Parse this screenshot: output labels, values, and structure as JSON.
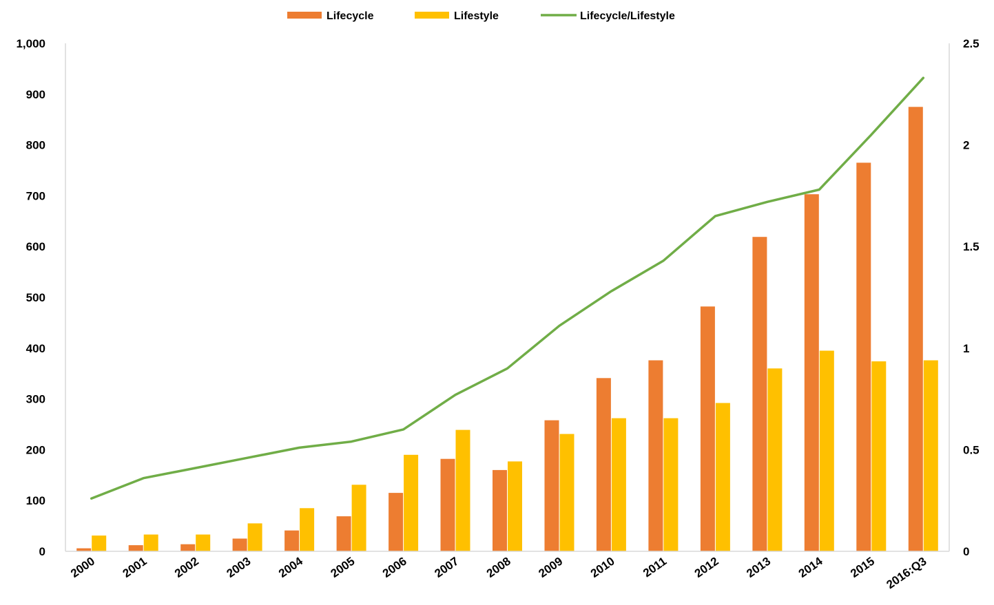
{
  "chart_data": {
    "type": "bar",
    "categories": [
      "2000",
      "2001",
      "2002",
      "2003",
      "2004",
      "2005",
      "2006",
      "2007",
      "2008",
      "2009",
      "2010",
      "2011",
      "2012",
      "2013",
      "2014",
      "2015",
      "2016:Q3"
    ],
    "series": [
      {
        "name": "Lifecycle",
        "type": "bar",
        "axis": "left",
        "color": "#ED7D31",
        "values": [
          6,
          12,
          14,
          25,
          41,
          69,
          115,
          182,
          160,
          258,
          341,
          376,
          482,
          619,
          703,
          765,
          875
        ]
      },
      {
        "name": "Lifestyle",
        "type": "bar",
        "axis": "left",
        "color": "#FFC000",
        "values": [
          31,
          33,
          33,
          55,
          85,
          131,
          190,
          239,
          177,
          231,
          262,
          262,
          292,
          360,
          395,
          374,
          376
        ]
      },
      {
        "name": "Lifecycle/Lifestyle",
        "type": "line",
        "axis": "right",
        "color": "#70AD47",
        "values": [
          0.26,
          0.36,
          0.41,
          0.46,
          0.51,
          0.54,
          0.6,
          0.77,
          0.9,
          1.11,
          1.28,
          1.43,
          1.65,
          1.72,
          1.78,
          2.05,
          2.33
        ]
      }
    ],
    "y_left": {
      "min": 0,
      "max": 1000,
      "ticks": [
        "0",
        "100",
        "200",
        "300",
        "400",
        "500",
        "600",
        "700",
        "800",
        "900",
        "1,000"
      ]
    },
    "y_right": {
      "min": 0,
      "max": 2.5,
      "ticks": [
        "0",
        "0.5",
        "1",
        "1.5",
        "2",
        "2.5"
      ]
    },
    "legend": {
      "position": "top"
    },
    "grid": false
  }
}
